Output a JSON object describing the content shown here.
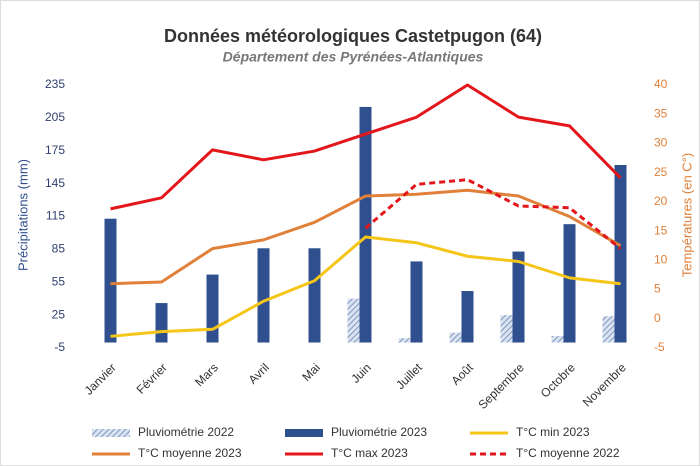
{
  "chart_data": {
    "type": "combo",
    "title": "Données météorologiques Castetpugon (64)",
    "subtitle": "Département des Pyrénées-Atlantiques",
    "ylabel": "Précipitations (mm)",
    "y2label": "Températures (en C°)",
    "categories": [
      "Janvier",
      "Février",
      "Mars",
      "Avril",
      "Mai",
      "Juin",
      "Juillet",
      "Août",
      "Septembre",
      "Octobre",
      "Novembre"
    ],
    "ylim": [
      -5,
      235
    ],
    "yticks": [
      -5,
      25,
      55,
      85,
      115,
      145,
      175,
      205,
      235
    ],
    "y2lim": [
      -5,
      40
    ],
    "y2ticks": [
      -5,
      0,
      5,
      10,
      15,
      20,
      25,
      30,
      35,
      40
    ],
    "grid": false,
    "series": [
      {
        "name": "Pluviométrie 2022",
        "type": "bar",
        "pattern": "hatch",
        "color": "#8ea6cc",
        "axis": "y",
        "values": [
          null,
          null,
          null,
          null,
          null,
          40,
          4,
          9,
          25,
          6,
          24
        ]
      },
      {
        "name": "Pluviométrie 2023",
        "type": "bar",
        "color": "#2f4f8f",
        "axis": "y",
        "values": [
          113,
          36,
          62,
          86,
          86,
          215,
          74,
          47,
          83,
          108,
          162
        ]
      },
      {
        "name": "T°C min 2023",
        "type": "line",
        "color": "#f5c518",
        "axis": "y2",
        "values": [
          -3,
          -2.2,
          -1.8,
          3,
          6.5,
          14,
          13,
          10.7,
          9.8,
          7,
          6
        ]
      },
      {
        "name": "T°C moyenne 2023",
        "type": "line",
        "color": "#e0803a",
        "axis": "y2",
        "values": [
          6,
          6.3,
          12,
          13.5,
          16.5,
          21,
          21.3,
          22,
          21,
          17.5,
          12.5
        ]
      },
      {
        "name": "T°C max 2023",
        "type": "line",
        "color": "#e3161b",
        "axis": "y2",
        "values": [
          18.8,
          20.7,
          28.9,
          27.2,
          28.7,
          31.6,
          34.5,
          40,
          34.5,
          33,
          24.1
        ]
      },
      {
        "name": "T°C moyenne 2022",
        "type": "line",
        "dash": true,
        "color": "#e3161b",
        "axis": "y2",
        "values": [
          null,
          null,
          null,
          null,
          null,
          15.5,
          23,
          23.8,
          19.3,
          19,
          12
        ]
      }
    ]
  }
}
